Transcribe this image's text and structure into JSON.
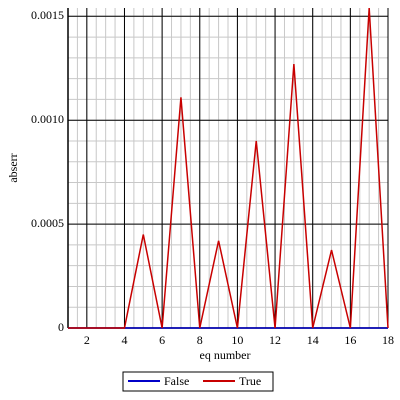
{
  "chart_data": {
    "type": "line",
    "x_label": "eq number",
    "y_label": "abserr",
    "x": [
      1,
      2,
      3,
      4,
      5,
      6,
      7,
      8,
      9,
      10,
      11,
      12,
      13,
      14,
      15,
      16,
      17,
      18
    ],
    "series": [
      {
        "name": "False",
        "color": "#0000c8",
        "values": [
          0,
          0,
          0,
          0,
          0,
          0,
          0,
          0,
          0,
          0,
          0,
          0,
          0,
          0,
          0,
          0,
          0,
          0
        ]
      },
      {
        "name": "True",
        "color": "#c80000",
        "values": [
          0,
          0,
          0,
          0,
          0.00045,
          0,
          0.00111,
          0,
          0.00042,
          0,
          0.0009,
          0,
          0.00127,
          0,
          0.000375,
          0,
          0.00154,
          0
        ]
      }
    ],
    "xlim": [
      1,
      18
    ],
    "ylim": [
      0,
      0.00154
    ],
    "xticks": [
      2,
      4,
      6,
      8,
      10,
      12,
      14,
      16,
      18
    ],
    "yticks": [
      0,
      0.0005,
      {
        "value": 0.001,
        "label": "0.0010"
      },
      0.0015
    ],
    "grid": true,
    "minor_grid": true,
    "legend": "bottom"
  }
}
